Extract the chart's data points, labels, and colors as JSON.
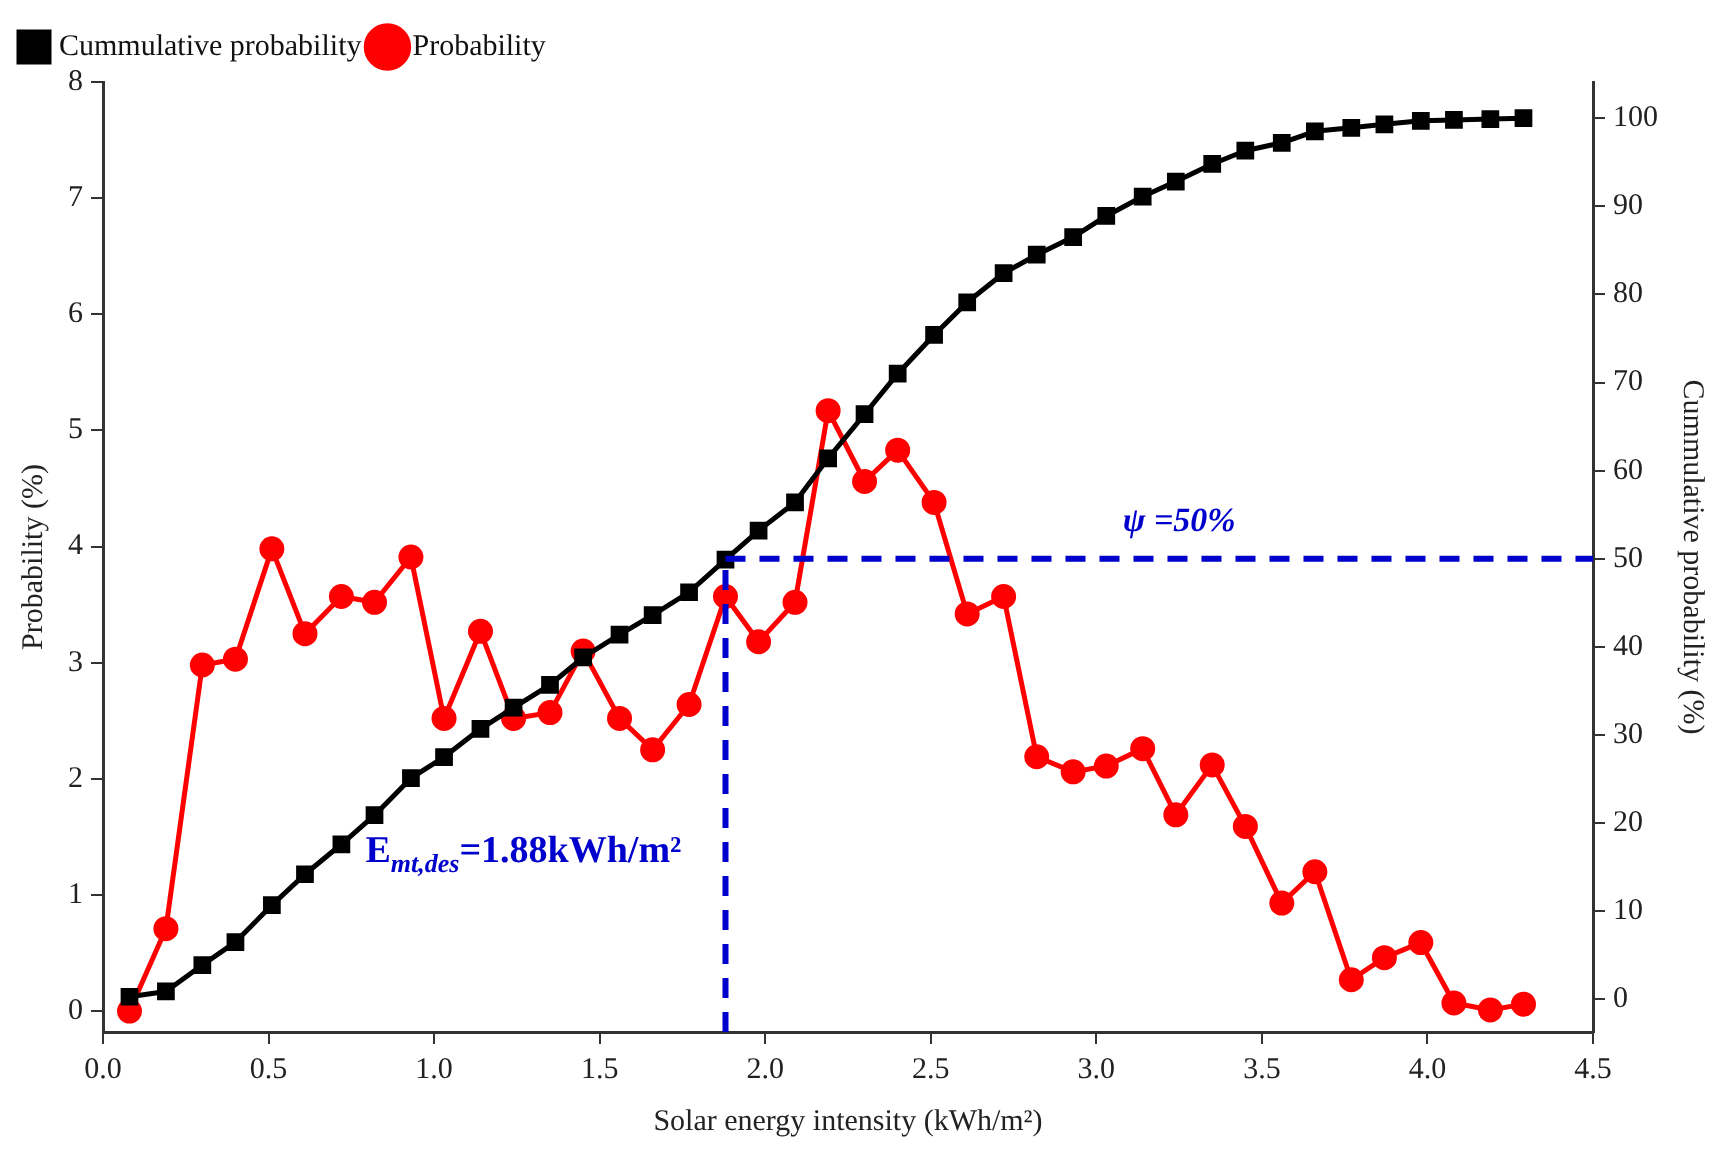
{
  "chart_data": {
    "type": "line",
    "xlabel": "Solar energy intensity (kWh/m²)",
    "ylabel": "Probability (%)",
    "y2label": "Cummulative probability (%)",
    "x": [
      0.08,
      0.19,
      0.3,
      0.4,
      0.51,
      0.61,
      0.72,
      0.82,
      0.93,
      1.03,
      1.14,
      1.24,
      1.35,
      1.45,
      1.56,
      1.66,
      1.77,
      1.88,
      1.98,
      2.09,
      2.19,
      2.3,
      2.4,
      2.51,
      2.61,
      2.72,
      2.82,
      2.93,
      3.03,
      3.14,
      3.24,
      3.35,
      3.45,
      3.56,
      3.66,
      3.77,
      3.87,
      3.98,
      4.08,
      4.19,
      4.29
    ],
    "series": [
      {
        "name": "Probability",
        "color": "#ff0000",
        "marker": "circle",
        "values": [
          0.0,
          0.71,
          2.98,
          3.03,
          3.98,
          3.25,
          3.57,
          3.52,
          3.91,
          2.52,
          3.27,
          2.52,
          2.57,
          3.1,
          2.52,
          2.25,
          2.64,
          3.57,
          3.18,
          3.52,
          5.17,
          4.56,
          4.83,
          4.38,
          3.42,
          3.57,
          2.19,
          2.06,
          2.11,
          2.26,
          1.69,
          2.12,
          1.59,
          0.93,
          1.2,
          0.27,
          0.46,
          0.59,
          0.07,
          0.01,
          0.06
        ]
      },
      {
        "name": "Cummulative probability",
        "color": "#000000",
        "marker": "square",
        "axis": "y2",
        "values": [
          0.3,
          0.9,
          3.9,
          6.5,
          10.7,
          14.2,
          17.6,
          20.9,
          25.1,
          27.5,
          30.7,
          33.1,
          35.7,
          38.8,
          41.4,
          43.6,
          46.2,
          49.9,
          53.2,
          56.4,
          61.4,
          66.4,
          71.0,
          75.4,
          79.1,
          82.4,
          84.5,
          86.5,
          88.9,
          91.1,
          92.8,
          94.8,
          96.3,
          97.2,
          98.5,
          98.9,
          99.3,
          99.7,
          99.8,
          99.9,
          100
        ]
      }
    ],
    "xlim": [
      0,
      4.5
    ],
    "xticks": [
      {
        "value": 0,
        "label": "0.0"
      },
      {
        "value": 0.5,
        "label": "0.5"
      },
      {
        "value": 1,
        "label": "1.0"
      },
      {
        "value": 1.5,
        "label": "1.5"
      },
      {
        "value": 2,
        "label": "2.0"
      },
      {
        "value": 2.5,
        "label": "2.5"
      },
      {
        "value": 3,
        "label": "3.0"
      },
      {
        "value": 3.5,
        "label": "3.5"
      },
      {
        "value": 4,
        "label": "4.0"
      },
      {
        "value": 4.5,
        "label": "4.5"
      }
    ],
    "ylim": [
      -0.18,
      8
    ],
    "yticks": [
      0,
      1,
      2,
      3,
      4,
      5,
      6,
      7,
      8
    ],
    "y2lim": [
      -3.7,
      104.1
    ],
    "y2ticks": [
      0,
      10,
      20,
      30,
      40,
      50,
      60,
      70,
      80,
      90,
      100
    ],
    "ref_lines": [
      {
        "axis": "x",
        "value": 1.88,
        "label": "E$_{mt,des}$=1.88kWh/m²",
        "color": "#0000cc",
        "line_style": "dashed"
      },
      {
        "axis": "y2",
        "value": 50,
        "label": "ψ =50%",
        "color": "#0000cc",
        "line_style": "dashed"
      }
    ],
    "grid": false,
    "legend": "top left",
    "line_style": "solid"
  }
}
